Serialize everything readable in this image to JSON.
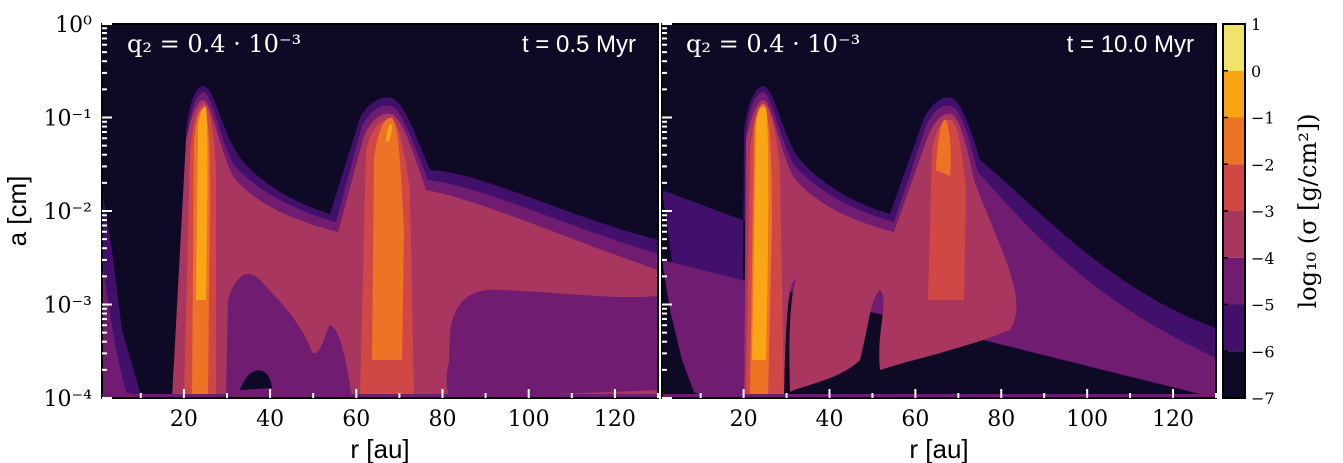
{
  "chart_data": {
    "type": "heatmap",
    "panels": [
      {
        "annotation_left": "q₂ = 0.4 · 10⁻³",
        "annotation_right": "t = 0.5 Myr"
      },
      {
        "annotation_left": "q₂ = 0.4 · 10⁻³",
        "annotation_right": "t = 10.0 Myr"
      }
    ],
    "xlabel": "r [au]",
    "ylabel": "a [cm]",
    "x_ticks": [
      "20",
      "40",
      "60",
      "80",
      "100",
      "120"
    ],
    "xlim": [
      1,
      130
    ],
    "ylim": [
      0.0001,
      1
    ],
    "y_scale": "log",
    "y_ticks": [
      "10⁰",
      "10⁻¹",
      "10⁻²",
      "10⁻³",
      "10⁻⁴"
    ],
    "colorbar": {
      "label": "log₁₀ (σ [g/cm²])",
      "ticks": [
        "1",
        "0",
        "−1",
        "−2",
        "−3",
        "−4",
        "−5",
        "−6",
        "−7"
      ],
      "levels": [
        {
          "range": [
            0,
            1
          ],
          "color": "#eee46a"
        },
        {
          "range": [
            -1,
            0
          ],
          "color": "#f8a516"
        },
        {
          "range": [
            -2,
            -1
          ],
          "color": "#ec7424"
        },
        {
          "range": [
            -3,
            -2
          ],
          "color": "#cf4846"
        },
        {
          "range": [
            -4,
            -3
          ],
          "color": "#a8365e"
        },
        {
          "range": [
            -5,
            -4
          ],
          "color": "#6f1c71"
        },
        {
          "range": [
            -6,
            -5
          ],
          "color": "#40106a"
        },
        {
          "range": [
            -7,
            -6
          ],
          "color": "#0e0a26"
        }
      ]
    }
  }
}
